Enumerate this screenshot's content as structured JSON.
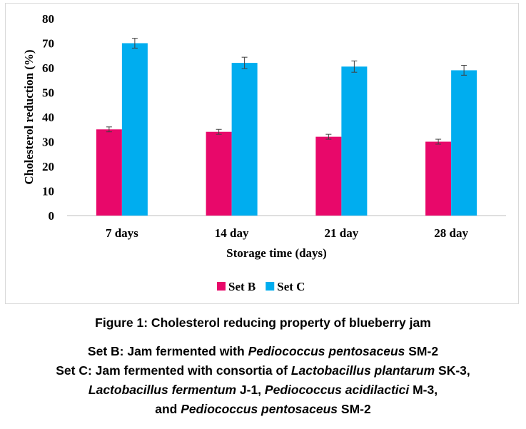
{
  "chart_data": {
    "type": "bar",
    "categories": [
      "7 days",
      "14 day",
      "21 day",
      "28 day"
    ],
    "series": [
      {
        "name": "Set B",
        "values": [
          35,
          34,
          32,
          30
        ],
        "errors": [
          1,
          1,
          1,
          1
        ],
        "color": "#e8086a"
      },
      {
        "name": "Set C",
        "values": [
          70,
          62,
          60.5,
          59
        ],
        "errors": [
          2,
          2.3,
          2.3,
          2
        ],
        "color": "#00adef"
      }
    ],
    "title": "",
    "xlabel": "Storage time (days)",
    "ylabel": "Cholesterol reduction (%)",
    "ylim": [
      0,
      80
    ],
    "yticks": [
      0,
      10,
      20,
      30,
      40,
      50,
      60,
      70,
      80
    ],
    "grid": false,
    "legend": "bottom"
  },
  "caption": {
    "figure_title": "Figure 1: Cholesterol reducing property of blueberry jam",
    "set_b": {
      "prefix": "Set B: Jam fermented with ",
      "species": "Pediococcus pentosaceus",
      "suffix": " SM-2"
    },
    "set_c": {
      "prefix": "Set C: Jam fermented with consortia of ",
      "species_1": "Lactobacillus plantarum",
      "strain_1": " SK-3,",
      "species_2": "Lactobacillus fermentum",
      "strain_2": " J-1, ",
      "species_3": "Pediococcus acidilactici",
      "strain_3": " M-3,",
      "and_text": "and ",
      "species_4": "Pediococcus pentosaceus",
      "strain_4": " SM-2"
    }
  }
}
